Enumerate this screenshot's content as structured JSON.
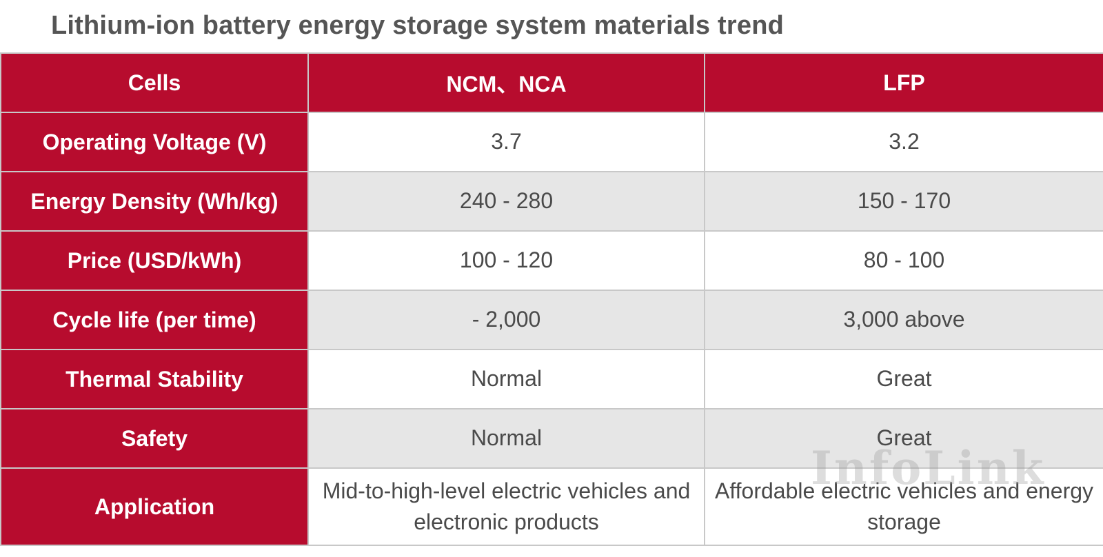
{
  "title": "Lithium-ion battery energy storage system materials trend",
  "watermark": "InfoLink",
  "colors": {
    "header_red": "#b70c2e",
    "row_gray": "#e6e6e6",
    "title_gray": "#555555"
  },
  "chart_data": {
    "type": "table",
    "title": "Lithium-ion battery energy storage system materials trend",
    "columns": [
      "Cells",
      "NCM、NCA",
      "LFP"
    ],
    "rows": [
      {
        "label": "Operating Voltage (V)",
        "values": [
          "3.7",
          "3.2"
        ]
      },
      {
        "label": "Energy Density (Wh/kg)",
        "values": [
          "240 - 280",
          "150 - 170"
        ]
      },
      {
        "label": "Price (USD/kWh)",
        "values": [
          "100 - 120",
          "80 - 100"
        ]
      },
      {
        "label": "Cycle life (per time)",
        "values": [
          "- 2,000",
          "3,000 above"
        ]
      },
      {
        "label": "Thermal Stability",
        "values": [
          "Normal",
          "Great"
        ]
      },
      {
        "label": "Safety",
        "values": [
          "Normal",
          "Great"
        ]
      },
      {
        "label": "Application",
        "values": [
          "Mid-to-high-level electric vehicles and electronic products",
          "Affordable electric vehicles and energy storage"
        ]
      }
    ]
  }
}
